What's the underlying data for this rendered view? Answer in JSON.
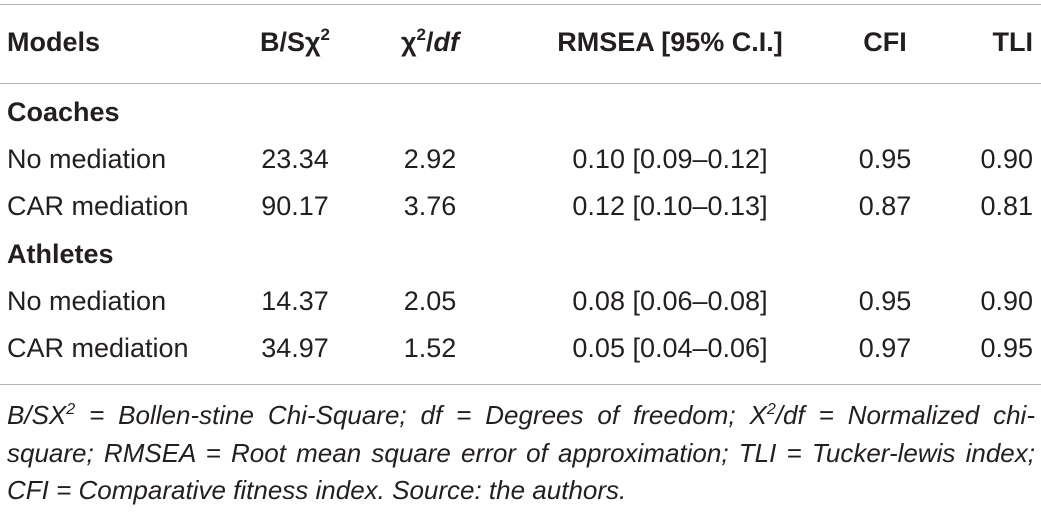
{
  "table": {
    "headers": {
      "models": "Models",
      "bs_prefix": "B/Sχ",
      "bs_sup": "2",
      "chi_prefix": "χ",
      "chi_sup": "2",
      "chi_slash": "/",
      "chi_df": "df",
      "rmsea": "RMSEA [95% C.I.]",
      "cfi": "CFI",
      "tli": "TLI"
    },
    "groups": [
      {
        "label": "Coaches",
        "rows": [
          {
            "model": "No mediation",
            "bs": "23.34",
            "chi_df": "2.92",
            "rmsea": "0.10 [0.09–0.12]",
            "cfi": "0.95",
            "tli": "0.90"
          },
          {
            "model": "CAR mediation",
            "bs": "90.17",
            "chi_df": "3.76",
            "rmsea": "0.12 [0.10–0.13]",
            "cfi": "0.87",
            "tli": "0.81"
          }
        ]
      },
      {
        "label": "Athletes",
        "rows": [
          {
            "model": "No mediation",
            "bs": "14.37",
            "chi_df": "2.05",
            "rmsea": "0.08 [0.06–0.08]",
            "cfi": "0.95",
            "tli": "0.90"
          },
          {
            "model": "CAR mediation",
            "bs": "34.97",
            "chi_df": "1.52",
            "rmsea": "0.05 [0.04–0.06]",
            "cfi": "0.97",
            "tli": "0.95"
          }
        ]
      }
    ]
  },
  "footnote": {
    "part1": "B/SX",
    "sup1": "2",
    "part2": " = Bollen-stine Chi-Square; df = Degrees of freedom; X",
    "sup2": "2",
    "part3": "/df = Normalized chi-square; RMSEA = Root mean square error of approximation; TLI = Tucker-lewis index; CFI = Comparative fitness index. Source: the authors."
  }
}
